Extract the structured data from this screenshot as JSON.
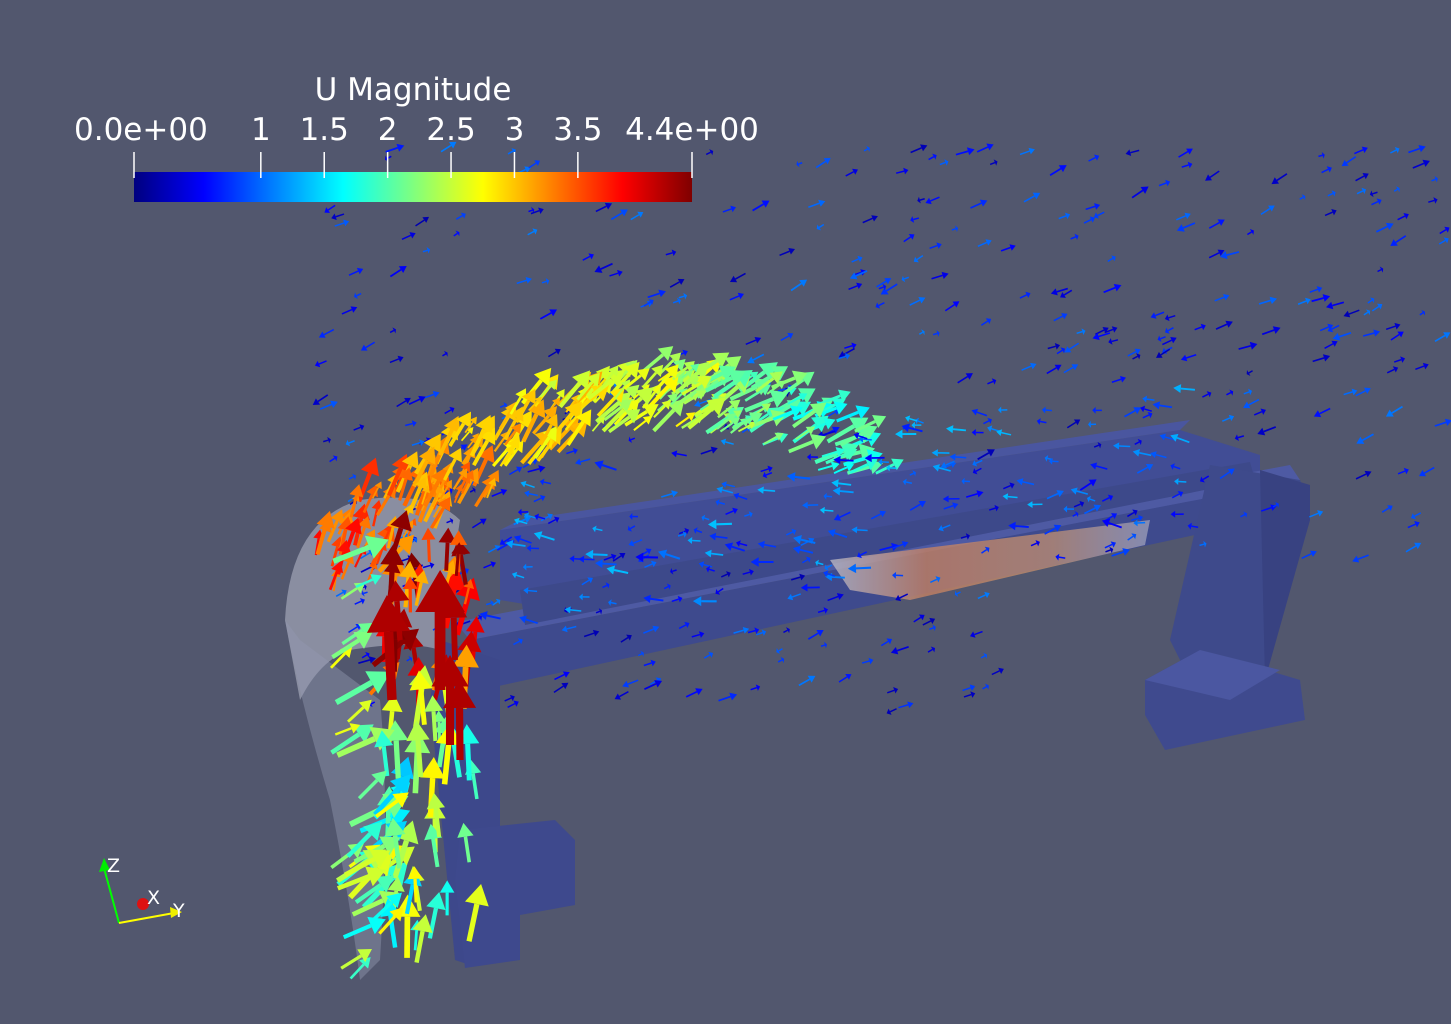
{
  "scalar_bar": {
    "title": "U Magnitude",
    "min": 0,
    "max": 4.4,
    "ticks": [
      {
        "label": "0.0e+00",
        "value": 0
      },
      {
        "label": "1",
        "value": 1
      },
      {
        "label": "1.5",
        "value": 1.5
      },
      {
        "label": "2",
        "value": 2
      },
      {
        "label": "2.5",
        "value": 2.5
      },
      {
        "label": "3",
        "value": 3
      },
      {
        "label": "3.5",
        "value": 3.5
      },
      {
        "label": "4.4e+00",
        "value": 4.4
      }
    ],
    "colormap": [
      "#00007f",
      "#0000ff",
      "#007fff",
      "#00ffff",
      "#7fff7f",
      "#ffff00",
      "#ff7f00",
      "#ff0000",
      "#7f0000"
    ]
  },
  "orientation_axes": {
    "x_label": "X",
    "y_label": "Y",
    "z_label": "Z",
    "x_color": "#ff0000",
    "y_color": "#ffff00",
    "z_color": "#00ff00"
  },
  "background_color": "#52576e",
  "geometry_color": "#3d4a9a"
}
